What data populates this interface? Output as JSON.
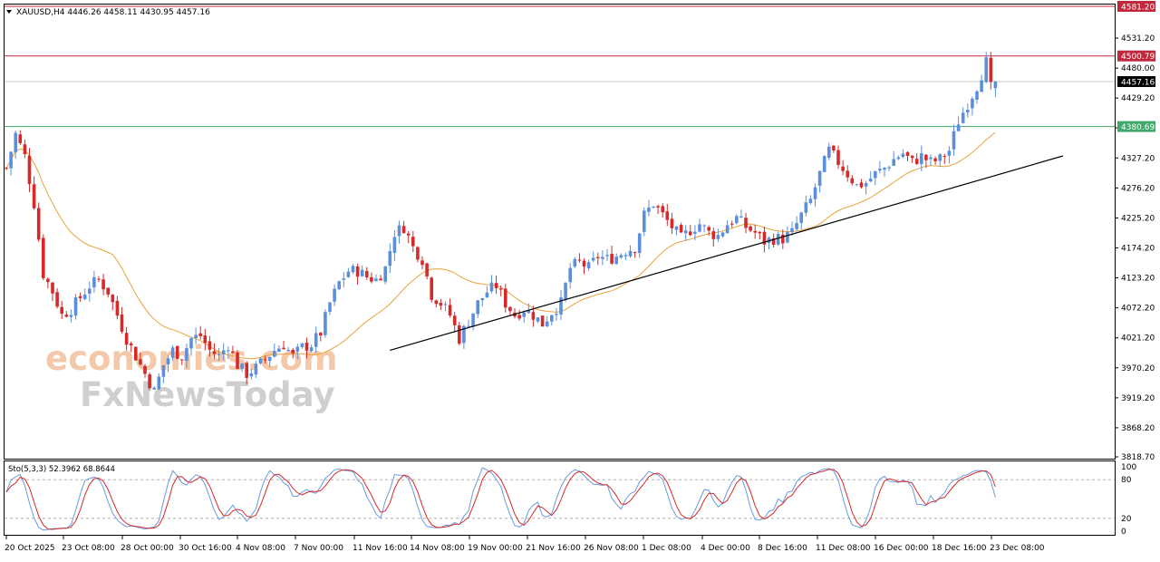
{
  "header": {
    "symbol_info": "XAUUSD,H4  4446.26 4458.11 4430.95 4457.16",
    "dropdown_icon": "triangle-down-icon"
  },
  "watermark": {
    "line1": "economies.com",
    "line2": "FxNewsToday"
  },
  "colors": {
    "bull": "#5b8fdb",
    "bear": "#d42a2a",
    "ma": "#e8a33a",
    "trend": "#000000",
    "red_level": "#c2283c",
    "green_level": "#3fa86a",
    "current_price": "#000000",
    "stoch_k": "#6b9ae0",
    "stoch_d": "#d42a2a",
    "watermark1": "#f2c6a6",
    "watermark2": "#d0d0d0"
  },
  "chart_data": {
    "type": "candlestick",
    "symbol": "XAUUSD",
    "timeframe": "H4",
    "ylim": [
      3818.7,
      4600
    ],
    "y_ticks": [
      "4531.20",
      "4480.00",
      "4429.20",
      "4378.50",
      "4327.20",
      "4276.20",
      "4225.20",
      "4174.20",
      "4123.20",
      "4072.20",
      "4021.20",
      "3970.20",
      "3919.20",
      "3868.20",
      "3818.70"
    ],
    "x_labels": [
      "20 Oct 2025",
      "23 Oct 08:00",
      "28 Oct 00:00",
      "30 Oct 16:00",
      "4 Nov 08:00",
      "7 Nov 00:00",
      "11 Nov 16:00",
      "14 Nov 08:00",
      "19 Nov 00:00",
      "21 Nov 16:00",
      "26 Nov 08:00",
      "1 Dec 08:00",
      "4 Dec 00:00",
      "8 Dec 16:00",
      "11 Dec 08:00",
      "16 Dec 00:00",
      "18 Dec 16:00",
      "23 Dec 08:00"
    ],
    "last_ohlc": {
      "open": 4446.26,
      "high": 4458.11,
      "low": 4430.95,
      "close": 4457.16
    },
    "close_path": [
      [
        0,
        4310
      ],
      [
        2,
        4368
      ],
      [
        4,
        4330
      ],
      [
        6,
        4250
      ],
      [
        8,
        4130
      ],
      [
        10,
        4100
      ],
      [
        12,
        4060
      ],
      [
        14,
        4070
      ],
      [
        16,
        4090
      ],
      [
        18,
        4110
      ],
      [
        20,
        4120
      ],
      [
        22,
        4100
      ],
      [
        24,
        4060
      ],
      [
        26,
        4020
      ],
      [
        28,
        3990
      ],
      [
        30,
        3960
      ],
      [
        32,
        3930
      ],
      [
        34,
        3975
      ],
      [
        36,
        4000
      ],
      [
        38,
        3990
      ],
      [
        40,
        4020
      ],
      [
        42,
        4025
      ],
      [
        44,
        4000
      ],
      [
        46,
        3990
      ],
      [
        48,
        4010
      ],
      [
        50,
        3975
      ],
      [
        52,
        3960
      ],
      [
        54,
        3970
      ],
      [
        56,
        3985
      ],
      [
        58,
        4000
      ],
      [
        60,
        4010
      ],
      [
        62,
        3990
      ],
      [
        64,
        4005
      ],
      [
        66,
        4010
      ],
      [
        68,
        4030
      ],
      [
        70,
        4080
      ],
      [
        72,
        4115
      ],
      [
        74,
        4135
      ],
      [
        76,
        4135
      ],
      [
        78,
        4125
      ],
      [
        80,
        4120
      ],
      [
        82,
        4140
      ],
      [
        84,
        4200
      ],
      [
        86,
        4210
      ],
      [
        88,
        4175
      ],
      [
        90,
        4155
      ],
      [
        92,
        4095
      ],
      [
        94,
        4080
      ],
      [
        96,
        4060
      ],
      [
        98,
        4020
      ],
      [
        100,
        4050
      ],
      [
        102,
        4080
      ],
      [
        104,
        4100
      ],
      [
        106,
        4110
      ],
      [
        108,
        4080
      ],
      [
        110,
        4060
      ],
      [
        112,
        4070
      ],
      [
        114,
        4060
      ],
      [
        116,
        4045
      ],
      [
        118,
        4065
      ],
      [
        120,
        4080
      ],
      [
        122,
        4140
      ],
      [
        124,
        4150
      ],
      [
        126,
        4140
      ],
      [
        128,
        4160
      ],
      [
        130,
        4155
      ],
      [
        132,
        4160
      ],
      [
        134,
        4170
      ],
      [
        136,
        4175
      ],
      [
        138,
        4230
      ],
      [
        140,
        4250
      ],
      [
        142,
        4230
      ],
      [
        144,
        4210
      ],
      [
        146,
        4190
      ],
      [
        148,
        4205
      ],
      [
        150,
        4215
      ],
      [
        152,
        4200
      ],
      [
        154,
        4195
      ],
      [
        156,
        4215
      ],
      [
        158,
        4225
      ],
      [
        160,
        4210
      ],
      [
        162,
        4200
      ],
      [
        164,
        4185
      ],
      [
        166,
        4190
      ],
      [
        168,
        4190
      ],
      [
        170,
        4200
      ],
      [
        172,
        4230
      ],
      [
        174,
        4255
      ],
      [
        176,
        4300
      ],
      [
        178,
        4340
      ],
      [
        180,
        4320
      ],
      [
        182,
        4300
      ],
      [
        184,
        4280
      ],
      [
        186,
        4285
      ],
      [
        188,
        4300
      ],
      [
        190,
        4310
      ],
      [
        192,
        4325
      ],
      [
        194,
        4335
      ],
      [
        196,
        4320
      ],
      [
        198,
        4330
      ],
      [
        200,
        4320
      ],
      [
        202,
        4325
      ],
      [
        204,
        4340
      ],
      [
        206,
        4390
      ],
      [
        208,
        4420
      ],
      [
        210,
        4450
      ],
      [
        212,
        4490
      ],
      [
        213,
        4446
      ],
      [
        214,
        4457
      ]
    ],
    "ma_label": "MA",
    "levels": {
      "resistance_top": 4581.2,
      "resistance": 4500.79,
      "current": 4457.16,
      "support": 4380.69
    },
    "trendline": {
      "from": {
        "x_index": 83,
        "price": 4000
      },
      "to": {
        "x_index": 197,
        "price": 4330
      }
    },
    "stochastic": {
      "label": "Sto(5,3,3) 52.3962 68.8644",
      "params": [
        5,
        3,
        3
      ],
      "k": 52.3962,
      "d": 68.8644,
      "ylim": [
        0,
        100
      ],
      "y_ticks": [
        "100",
        "80",
        "20",
        "0"
      ],
      "levels": [
        80,
        20
      ]
    }
  }
}
